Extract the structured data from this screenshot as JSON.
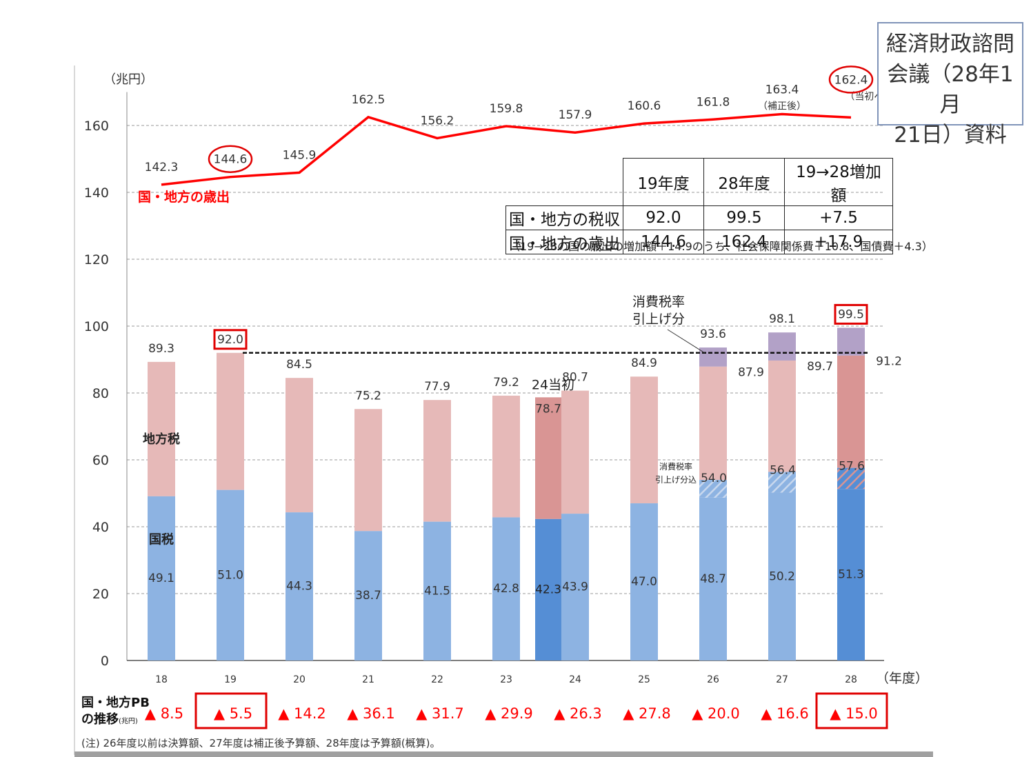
{
  "source_box": {
    "lines": [
      "経済財政諮問",
      "会議（28年1月",
      "21日）資料"
    ]
  },
  "chart_data": {
    "type": "bar",
    "y_unit_label": "（兆円）",
    "x_unit_label": "（年度）",
    "ylim": [
      0,
      170
    ],
    "yticks": [
      0,
      20,
      40,
      60,
      80,
      100,
      120,
      140,
      160
    ],
    "grid": true,
    "categories": [
      "18",
      "19",
      "20",
      "21",
      "22",
      "23",
      "24",
      "25",
      "26",
      "27",
      "28"
    ],
    "bar_series": [
      {
        "name": "国税",
        "values": [
          49.1,
          51.0,
          44.3,
          38.7,
          41.5,
          42.8,
          43.9,
          47.0,
          48.7,
          50.2,
          51.3
        ],
        "color": "#8db3e2",
        "highlight_color": "#558ed5"
      },
      {
        "name": "地方税",
        "totals": [
          89.3,
          92.0,
          84.5,
          75.2,
          77.9,
          79.2,
          80.7,
          84.9,
          93.6,
          98.1,
          99.5
        ],
        "color": "#e6b9b8",
        "highlight_color": "#d99594"
      }
    ],
    "consumption_tax_hike": {
      "label": "消費税率引上げ分",
      "national_hatch_top": {
        "26": 54.0,
        "27": 56.4,
        "28": 57.6
      },
      "national_hatch_base": {
        "26": 48.7,
        "27": 50.2,
        "28": 51.3
      },
      "total_excluding_hike": {
        "26": 87.9,
        "27": 89.7,
        "28": 91.2
      },
      "color": "#b2a1c7",
      "hatch_label_lines": [
        "消費税率",
        "引上げ分込"
      ]
    },
    "extra_bar_24_initial": {
      "label": "24当初",
      "total": 78.7,
      "national": 42.3
    },
    "reference_line": {
      "value": 92.0,
      "from_category": "19"
    },
    "expenditure_series": {
      "name": "国・地方の歳出",
      "values": [
        142.3,
        144.6,
        145.9,
        162.5,
        156.2,
        159.8,
        157.9,
        160.6,
        161.8,
        163.4,
        162.4
      ],
      "notes": {
        "27": "（補正後）",
        "28": "（当初ベース）"
      },
      "color": "#ff0000"
    },
    "highlighted": {
      "circled_expenditure": [
        "19",
        "28"
      ],
      "boxed_revenue": [
        "19",
        "28"
      ]
    },
    "bar_axis_labels": {
      "local": "地方税",
      "national": "国税"
    },
    "pb_balance": {
      "label_lines": [
        "国・地方PB",
        "の推移"
      ],
      "label_unit": "(兆円)",
      "values": [
        "▲ 8.5",
        "▲ 5.5",
        "▲ 14.2",
        "▲ 36.1",
        "▲ 31.7",
        "▲ 29.9",
        "▲ 26.3",
        "▲ 27.8",
        "▲ 20.0",
        "▲ 16.6",
        "▲ 15.0"
      ],
      "boxed": [
        "19",
        "28"
      ]
    }
  },
  "summary_table": {
    "headers": [
      "",
      "19年度",
      "28年度",
      "19→28増加額"
    ],
    "rows": [
      [
        "国・地方の税収",
        "92.0",
        "99.5",
        "+7.5"
      ],
      [
        "国・地方の歳出",
        "144.6",
        "162.4",
        "+17.9"
      ]
    ],
    "note": "（19→28の国の歳出の増加額＋14.9のうち、社会保障関係費＋10.8、国債費＋4.3）"
  },
  "footnote": "(注) 26年度以前は決算額、27年度は補正後予算額、28年度は予算額(概算)。"
}
